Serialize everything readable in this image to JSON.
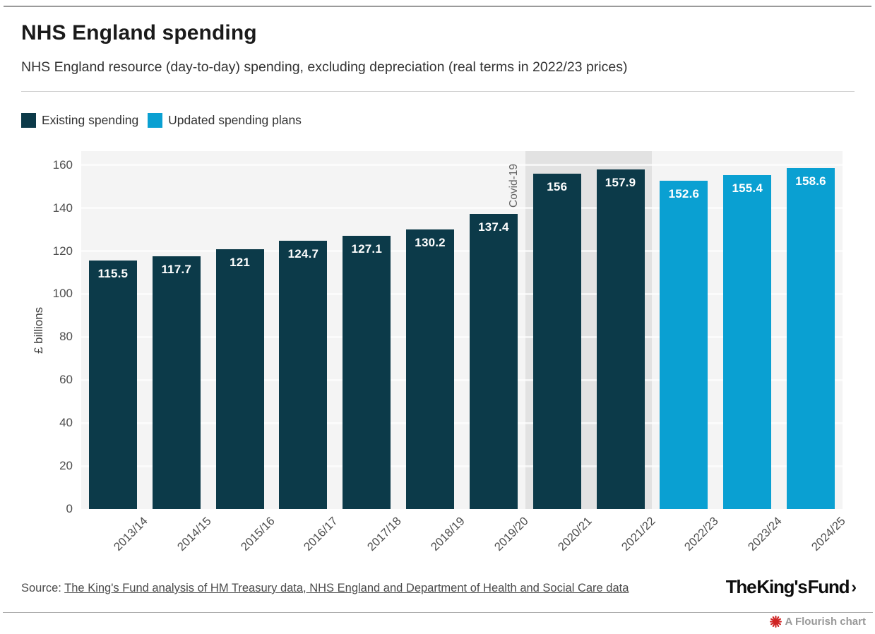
{
  "header": {
    "title": "NHS England spending",
    "subtitle": "NHS England resource (day-to-day) spending, excluding depreciation (real terms in 2022/23 prices)"
  },
  "chart_data": {
    "type": "bar",
    "title": "NHS England spending",
    "ylabel": "£ billions",
    "xlabel": "",
    "ylim": [
      0,
      166
    ],
    "yticks": [
      0,
      20,
      40,
      60,
      80,
      100,
      120,
      140,
      160
    ],
    "grid": true,
    "legend_position": "top-left",
    "categories": [
      "2013/14",
      "2014/15",
      "2015/16",
      "2016/17",
      "2017/18",
      "2018/19",
      "2019/20",
      "2020/21",
      "2021/22",
      "2022/23",
      "2023/24",
      "2024/25"
    ],
    "series": [
      {
        "name": "Existing spending",
        "color": "#0c3a49"
      },
      {
        "name": "Updated spending plans",
        "color": "#0aa0d2"
      }
    ],
    "bars": [
      {
        "category": "2013/14",
        "value": 115.5,
        "label": "115.5",
        "series": "Existing spending"
      },
      {
        "category": "2014/15",
        "value": 117.7,
        "label": "117.7",
        "series": "Existing spending"
      },
      {
        "category": "2015/16",
        "value": 121,
        "label": "121",
        "series": "Existing spending"
      },
      {
        "category": "2016/17",
        "value": 124.7,
        "label": "124.7",
        "series": "Existing spending"
      },
      {
        "category": "2017/18",
        "value": 127.1,
        "label": "127.1",
        "series": "Existing spending"
      },
      {
        "category": "2018/19",
        "value": 130.2,
        "label": "130.2",
        "series": "Existing spending"
      },
      {
        "category": "2019/20",
        "value": 137.4,
        "label": "137.4",
        "series": "Existing spending"
      },
      {
        "category": "2020/21",
        "value": 156,
        "label": "156",
        "series": "Existing spending"
      },
      {
        "category": "2021/22",
        "value": 157.9,
        "label": "157.9",
        "series": "Existing spending"
      },
      {
        "category": "2022/23",
        "value": 152.6,
        "label": "152.6",
        "series": "Updated spending plans"
      },
      {
        "category": "2023/24",
        "value": 155.4,
        "label": "155.4",
        "series": "Updated spending plans"
      },
      {
        "category": "2024/25",
        "value": 158.6,
        "label": "158.6",
        "series": "Updated spending plans"
      }
    ],
    "annotation": {
      "text": "Covid-19",
      "from_category": "2020/21",
      "to_category": "2021/22",
      "region_color": "#e2e2e2"
    },
    "plot_bg_color": "#f4f4f4"
  },
  "footer": {
    "source_prefix": "Source:",
    "source_link": "The King's Fund analysis of HM Treasury data, NHS England and Department of Health and Social Care data",
    "logo_text": "The King's Fund",
    "logo_chevron": "›",
    "flourish_label": "A Flourish chart"
  }
}
